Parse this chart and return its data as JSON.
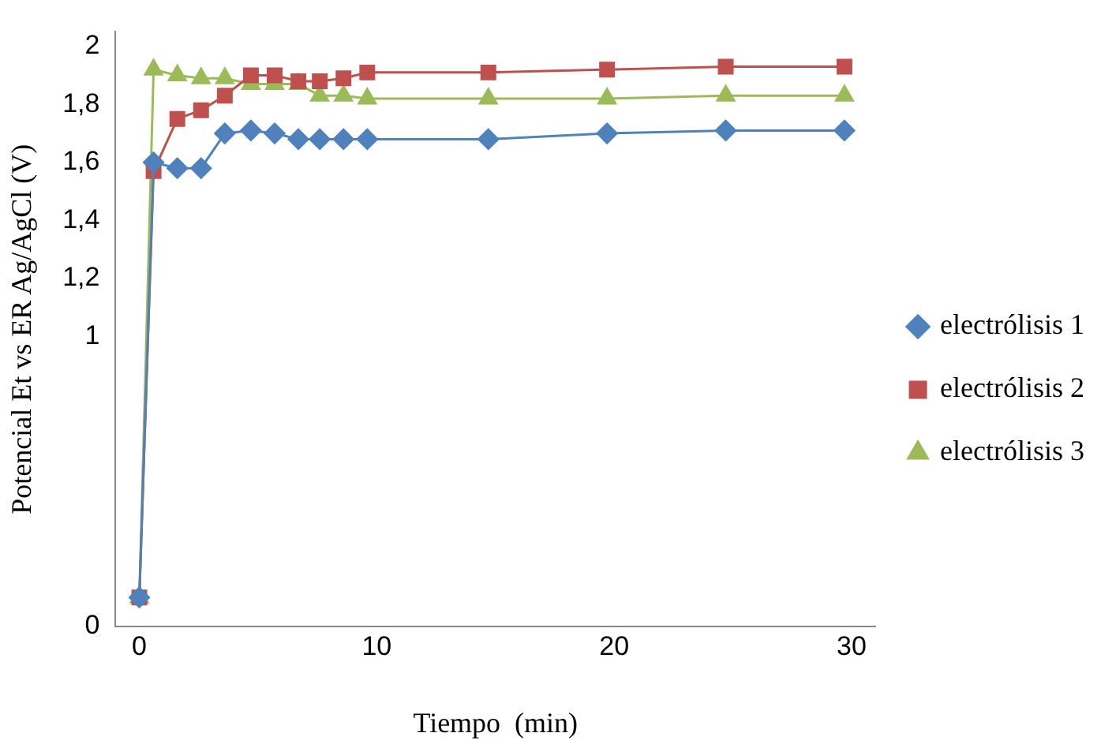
{
  "chart_data": {
    "type": "line",
    "xlabel": "Tiempo  (min)",
    "ylabel": "Potencial Et vs ER Ag/AgCl (V)",
    "x": [
      0,
      0.6,
      1.6,
      2.6,
      3.6,
      4.7,
      5.7,
      6.7,
      7.6,
      8.6,
      9.6,
      14.7,
      19.7,
      24.7,
      29.7
    ],
    "xlim": [
      -1,
      31
    ],
    "xticks": [
      0,
      10,
      20,
      30
    ],
    "ylim": [
      0,
      2.05
    ],
    "yticks": [
      0,
      1,
      {
        "value": 1.2,
        "label": "1,2"
      },
      {
        "value": 1.4,
        "label": "1,4"
      },
      {
        "value": 1.6,
        "label": "1,6"
      },
      {
        "value": 1.8,
        "label": "1,8"
      },
      2
    ],
    "grid": false,
    "legend": "right",
    "series": [
      {
        "name": "electrólisis 1",
        "color": "#4f81bd",
        "marker": "diamond",
        "values": [
          0.1,
          1.6,
          1.58,
          1.58,
          1.7,
          1.71,
          1.7,
          1.68,
          1.68,
          1.68,
          1.68,
          1.68,
          1.7,
          1.71,
          1.71
        ]
      },
      {
        "name": "electrólisis 2",
        "color": "#c0504d",
        "marker": "square",
        "values": [
          0.1,
          1.57,
          1.75,
          1.78,
          1.83,
          1.9,
          1.9,
          1.88,
          1.88,
          1.89,
          1.91,
          1.91,
          1.92,
          1.93,
          1.93
        ]
      },
      {
        "name": "electrólisis 3",
        "color": "#9bbb59",
        "marker": "triangle",
        "values": [
          0.1,
          1.92,
          1.9,
          1.89,
          1.89,
          1.87,
          1.87,
          1.87,
          1.83,
          1.83,
          1.82,
          1.82,
          1.82,
          1.83,
          1.83
        ]
      }
    ]
  }
}
